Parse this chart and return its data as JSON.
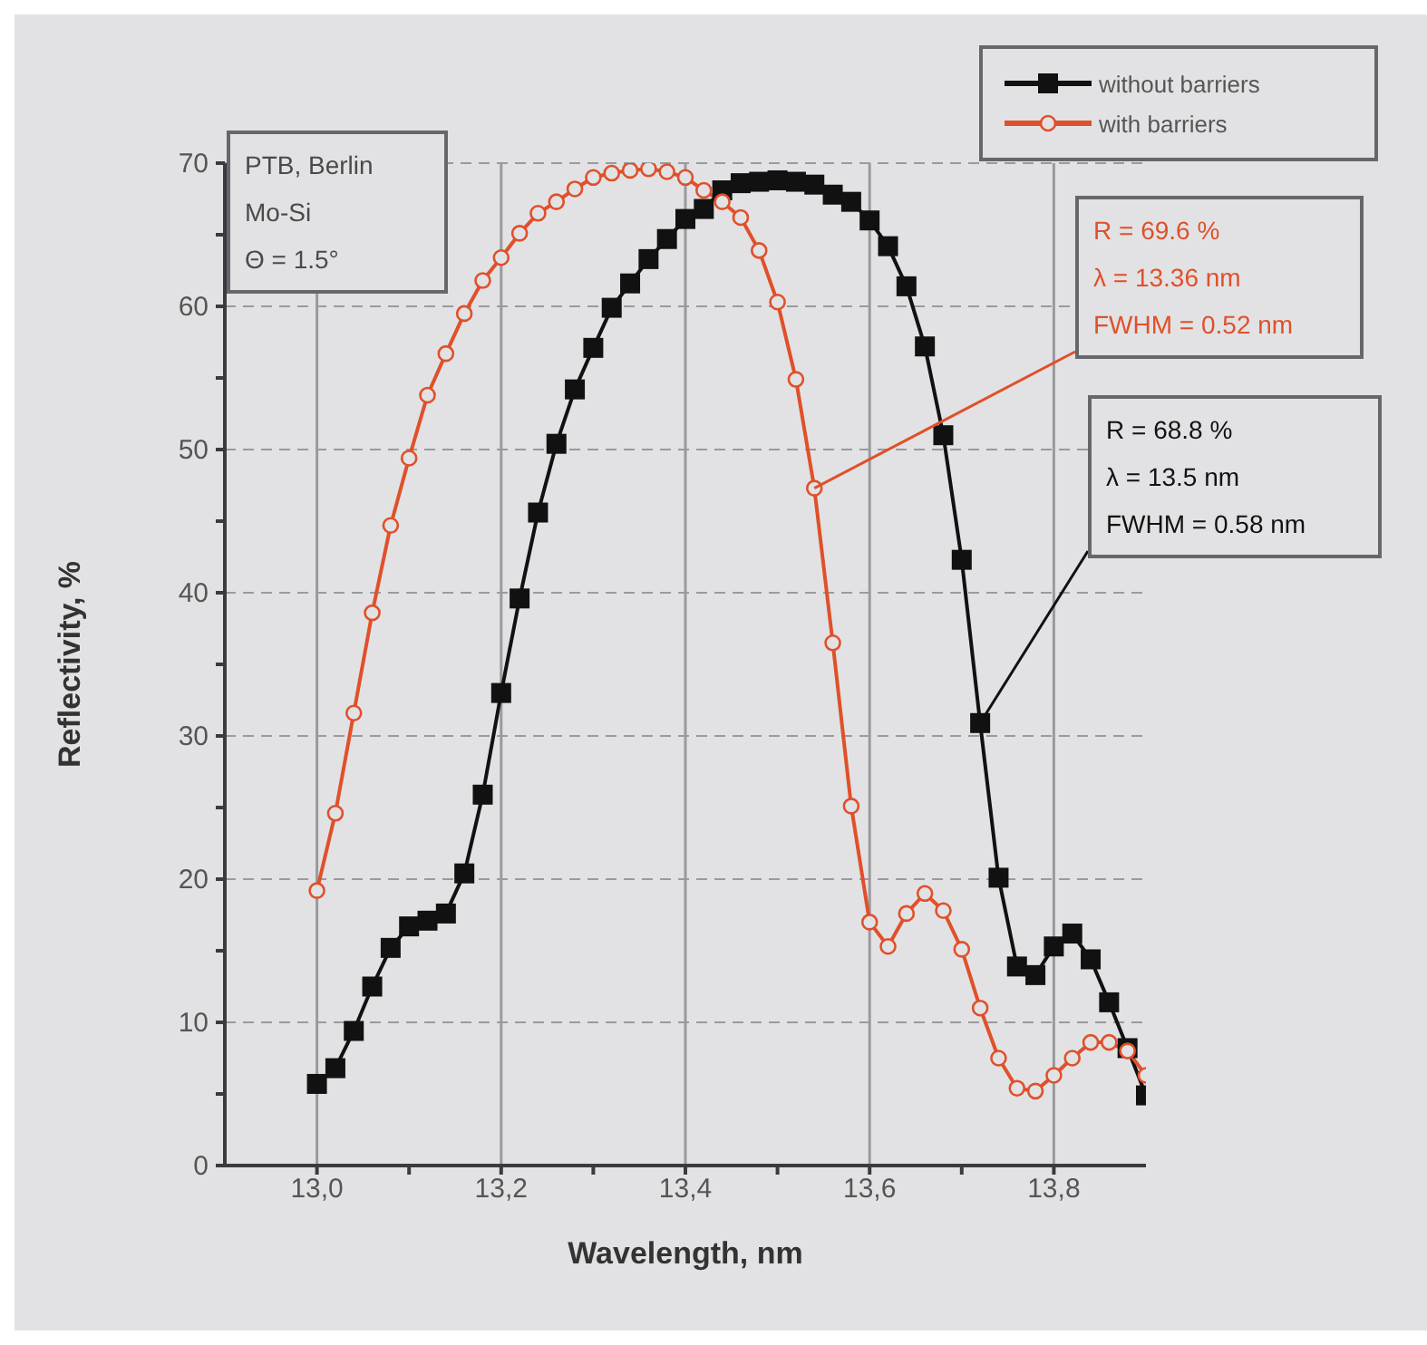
{
  "chart_data": {
    "type": "line",
    "xlabel": "Wavelength, nm",
    "ylabel": "Reflectivity, %",
    "x": [
      13.0,
      13.02,
      13.04,
      13.06,
      13.08,
      13.1,
      13.12,
      13.14,
      13.16,
      13.18,
      13.2,
      13.22,
      13.24,
      13.26,
      13.28,
      13.3,
      13.32,
      13.34,
      13.36,
      13.38,
      13.4,
      13.42,
      13.44,
      13.46,
      13.48,
      13.5,
      13.52,
      13.54,
      13.56,
      13.58,
      13.6,
      13.62,
      13.64,
      13.66,
      13.68,
      13.7,
      13.72,
      13.74,
      13.76,
      13.78,
      13.8,
      13.82,
      13.84,
      13.86,
      13.88,
      13.9
    ],
    "series": [
      {
        "name": "without barriers",
        "color": "#111111",
        "marker": "square",
        "values": [
          5.7,
          6.8,
          9.4,
          12.5,
          15.2,
          16.7,
          17.1,
          17.6,
          20.4,
          25.9,
          33.0,
          39.6,
          45.6,
          50.4,
          54.2,
          57.1,
          59.9,
          61.6,
          63.3,
          64.7,
          66.1,
          66.8,
          68.1,
          68.6,
          68.7,
          68.8,
          68.7,
          68.5,
          67.8,
          67.3,
          66.0,
          64.2,
          61.4,
          57.2,
          51.0,
          42.3,
          30.9,
          20.1,
          13.9,
          13.3,
          15.3,
          16.2,
          14.4,
          11.4,
          8.2,
          4.9
        ]
      },
      {
        "name": "with barriers",
        "color": "#e0502a",
        "marker": "circle",
        "values": [
          19.2,
          24.6,
          31.6,
          38.6,
          44.7,
          49.4,
          53.8,
          56.7,
          59.5,
          61.8,
          63.4,
          65.1,
          66.5,
          67.3,
          68.2,
          69.0,
          69.3,
          69.5,
          69.6,
          69.4,
          69.0,
          68.1,
          67.3,
          66.2,
          63.9,
          60.3,
          54.9,
          47.3,
          36.5,
          25.1,
          17.0,
          15.3,
          17.6,
          19.0,
          17.8,
          15.1,
          11.0,
          7.5,
          5.4,
          5.2,
          6.3,
          7.5,
          8.6,
          8.6,
          8.0,
          6.3
        ]
      }
    ],
    "xlim": [
      12.9,
      13.9
    ],
    "xticks": [
      {
        "value": 13.0,
        "label": "13,0"
      },
      {
        "value": 13.1,
        "label": null
      },
      {
        "value": 13.2,
        "label": "13,2"
      },
      {
        "value": 13.3,
        "label": null
      },
      {
        "value": 13.4,
        "label": "13,4"
      },
      {
        "value": 13.5,
        "label": null
      },
      {
        "value": 13.6,
        "label": "13,6"
      },
      {
        "value": 13.7,
        "label": null
      },
      {
        "value": 13.8,
        "label": "13,8"
      }
    ],
    "ylim": [
      0,
      70
    ],
    "yticks": [
      0,
      {
        "value": 5,
        "label": null
      },
      10,
      {
        "value": 15,
        "label": null
      },
      20,
      {
        "value": 25,
        "label": null
      },
      30,
      {
        "value": 35,
        "label": null
      },
      40,
      {
        "value": 45,
        "label": null
      },
      50,
      {
        "value": 55,
        "label": null
      },
      60,
      {
        "value": 65,
        "label": null
      },
      70
    ],
    "grid": true,
    "legend": "top right",
    "line_style": "solid",
    "annotations": [
      "PTB, Berlin\nMo-Si\nΘ = 1.5°",
      {
        "text": "R = 69.6 %\nλ = 13.36 nm\nFWHM = 0.52 nm",
        "x": 13.54,
        "y": 47.3
      },
      {
        "text": "R = 68.8 %\nλ = 13.5 nm\nFWHM = 0.58 nm",
        "x": 13.72,
        "y": 30.9
      }
    ]
  }
}
